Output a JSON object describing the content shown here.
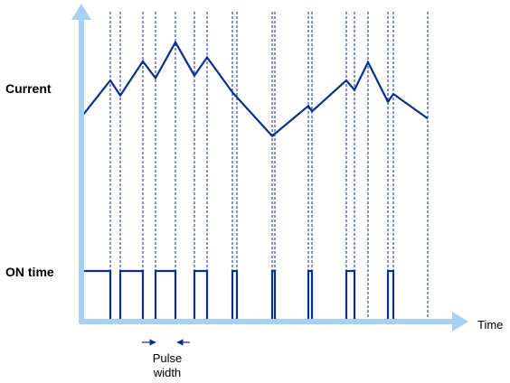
{
  "colors": {
    "axis": "#a8d0f4",
    "signal": "#0a2f8c",
    "gridline": "#0a2f8c",
    "text": "#000000"
  },
  "chart_data": {
    "type": "line",
    "title": "",
    "axes": {
      "x_label": "Time",
      "x_ticks": "none",
      "y_ticks": "none",
      "grid": "dashed vertical lines at every PWM switching instant"
    },
    "row_labels": {
      "current": "Current",
      "on_time": "ON time"
    },
    "annotation": {
      "label_line1": "Pulse",
      "label_line2": "width",
      "marks": "arrows pointing inward at both edges of one ON pulse"
    },
    "time_range": [
      0,
      386
    ],
    "switch_times": [
      32,
      43,
      68,
      82,
      104,
      125,
      139,
      167,
      172,
      211,
      214,
      251,
      255,
      293,
      302,
      317,
      339,
      345,
      383
    ],
    "series": [
      {
        "name": "Current",
        "points": [
          [
            0,
            54
          ],
          [
            32,
            100
          ],
          [
            43,
            81
          ],
          [
            68,
            124
          ],
          [
            82,
            103
          ],
          [
            104,
            148
          ],
          [
            125,
            106
          ],
          [
            139,
            129
          ],
          [
            167,
            85
          ],
          [
            211,
            30
          ],
          [
            251,
            68
          ],
          [
            255,
            61
          ],
          [
            293,
            100
          ],
          [
            302,
            88
          ],
          [
            317,
            123
          ],
          [
            339,
            73
          ],
          [
            345,
            83
          ],
          [
            383,
            52
          ]
        ]
      },
      {
        "name": "ON time",
        "levels": [
          "high",
          "low"
        ],
        "intervals_on": [
          [
            0,
            32
          ],
          [
            43,
            68
          ],
          [
            82,
            104
          ],
          [
            125,
            139
          ],
          [
            172,
            167
          ],
          [
            214,
            211
          ],
          [
            255,
            251
          ],
          [
            302,
            293
          ],
          [
            345,
            339
          ]
        ],
        "on_intervals": [
          [
            0,
            32
          ],
          [
            43,
            68
          ],
          [
            82,
            104
          ],
          [
            125,
            139
          ],
          [
            167,
            172
          ],
          [
            211,
            214
          ],
          [
            251,
            255
          ],
          [
            293,
            302
          ],
          [
            339,
            345
          ]
        ]
      }
    ]
  }
}
